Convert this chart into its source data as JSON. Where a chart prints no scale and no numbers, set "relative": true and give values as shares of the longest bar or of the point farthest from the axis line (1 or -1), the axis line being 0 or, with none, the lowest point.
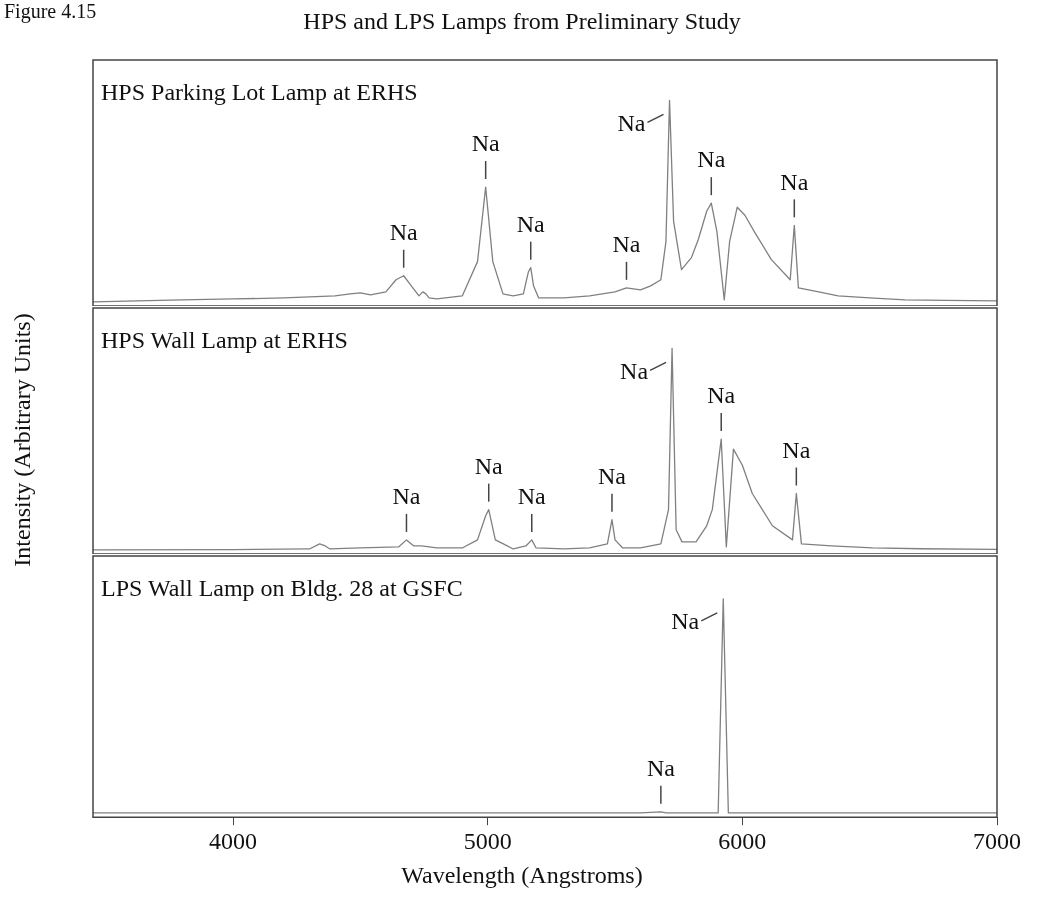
{
  "chart_data": [
    {
      "type": "line",
      "title": "HPS and LPS Lamps from Preliminary Study",
      "subtitle": "HPS Parking Lot Lamp at ERHS",
      "relative": true,
      "color": "#808080",
      "tick_labels": false,
      "xlim": [
        3450,
        7000
      ],
      "xticks": [
        4000,
        5000,
        6000,
        7000
      ],
      "x": [
        3450,
        3800,
        4000,
        4200,
        4400,
        4460,
        4500,
        4540,
        4600,
        4640,
        4670,
        4700,
        4730,
        4745,
        4757,
        4770,
        4800,
        4900,
        4960,
        4992,
        5020,
        5060,
        5100,
        5140,
        5160,
        5169,
        5180,
        5200,
        5300,
        5400,
        5500,
        5545,
        5600,
        5640,
        5680,
        5700,
        5714,
        5730,
        5761,
        5800,
        5827,
        5860,
        5878,
        5900,
        5929,
        5950,
        5980,
        6010,
        6051,
        6114,
        6188,
        6204,
        6220,
        6300,
        6376,
        6500,
        6639,
        6800,
        7000
      ],
      "values": [
        0,
        0.01,
        0.015,
        0.02,
        0.03,
        0.04,
        0.045,
        0.035,
        0.05,
        0.11,
        0.13,
        0.08,
        0.03,
        0.05,
        0.04,
        0.02,
        0.015,
        0.03,
        0.2,
        0.57,
        0.2,
        0.04,
        0.03,
        0.04,
        0.15,
        0.17,
        0.08,
        0.02,
        0.02,
        0.03,
        0.05,
        0.07,
        0.06,
        0.08,
        0.11,
        0.3,
        1.0,
        0.4,
        0.16,
        0.22,
        0.31,
        0.45,
        0.49,
        0.35,
        0.01,
        0.3,
        0.47,
        0.43,
        0.34,
        0.21,
        0.11,
        0.38,
        0.07,
        0.05,
        0.03,
        0.02,
        0.01,
        0.008,
        0.005
      ],
      "annotations": [
        "Figure 4.15",
        {
          "text": "Na",
          "x": 4670,
          "y": 0.13
        },
        {
          "text": "Na",
          "x": 4992,
          "y": 0.57
        },
        {
          "text": "Na",
          "x": 5169,
          "y": 0.17
        },
        {
          "text": "Na",
          "x": 5545,
          "y": 0.07
        },
        {
          "text": "Na",
          "x": 5714,
          "y": 1.0
        },
        {
          "text": "Na",
          "x": 5878,
          "y": 0.49
        },
        {
          "text": "Na",
          "x": 6204,
          "y": 0.38
        }
      ]
    },
    {
      "type": "line",
      "subtitle": "HPS Wall Lamp at ERHS",
      "ylabel": "Intensity (Arbitrary Units)",
      "relative": true,
      "color": "#808080",
      "tick_labels": false,
      "xlim": [
        3450,
        7000
      ],
      "xticks": [
        4000,
        5000,
        6000,
        7000
      ],
      "x": [
        3450,
        4000,
        4300,
        4340,
        4362,
        4380,
        4500,
        4650,
        4681,
        4710,
        4740,
        4800,
        4900,
        4960,
        4992,
        5004,
        5030,
        5100,
        5150,
        5173,
        5190,
        5300,
        5400,
        5470,
        5488,
        5500,
        5530,
        5600,
        5680,
        5710,
        5724,
        5740,
        5763,
        5818,
        5860,
        5882,
        5917,
        5937,
        5965,
        6000,
        6039,
        6118,
        6197,
        6212,
        6232,
        6350,
        6512,
        6700,
        7000
      ],
      "values": [
        0,
        0.002,
        0.005,
        0.03,
        0.02,
        0.005,
        0.01,
        0.015,
        0.05,
        0.02,
        0.02,
        0.01,
        0.01,
        0.05,
        0.17,
        0.2,
        0.05,
        0.005,
        0.02,
        0.05,
        0.01,
        0.005,
        0.01,
        0.03,
        0.15,
        0.05,
        0.01,
        0.01,
        0.03,
        0.2,
        1.0,
        0.1,
        0.04,
        0.04,
        0.12,
        0.2,
        0.55,
        0.015,
        0.5,
        0.42,
        0.28,
        0.12,
        0.05,
        0.28,
        0.03,
        0.02,
        0.01,
        0.006,
        0.003
      ],
      "annotations": [
        {
          "text": "Na",
          "x": 4681,
          "y": 0.05
        },
        {
          "text": "Na",
          "x": 5004,
          "y": 0.2
        },
        {
          "text": "Na",
          "x": 5173,
          "y": 0.05
        },
        {
          "text": "Na",
          "x": 5488,
          "y": 0.15
        },
        {
          "text": "Na",
          "x": 5724,
          "y": 1.0
        },
        {
          "text": "Na",
          "x": 5917,
          "y": 0.55
        },
        {
          "text": "Na",
          "x": 6212,
          "y": 0.28
        }
      ]
    },
    {
      "type": "line",
      "subtitle": "LPS Wall Lamp on Bldg. 28 at GSFC",
      "xlabel": "Wavelength (Angstroms)",
      "relative": true,
      "color": "#808080",
      "tick_labels": "x",
      "xlim": [
        3450,
        7000
      ],
      "xticks": [
        4000,
        5000,
        6000,
        7000
      ],
      "x": [
        3450,
        5600,
        5680,
        5700,
        5905,
        5915,
        5925,
        5935,
        5945,
        7000
      ],
      "values": [
        0,
        0,
        0.005,
        0,
        0,
        0.5,
        1.0,
        0.5,
        0,
        0
      ],
      "annotations": [
        {
          "text": "Na",
          "x": 5925,
          "y": 1.0
        },
        {
          "text": "Na",
          "x": 5680,
          "y": 0.005
        }
      ]
    }
  ]
}
